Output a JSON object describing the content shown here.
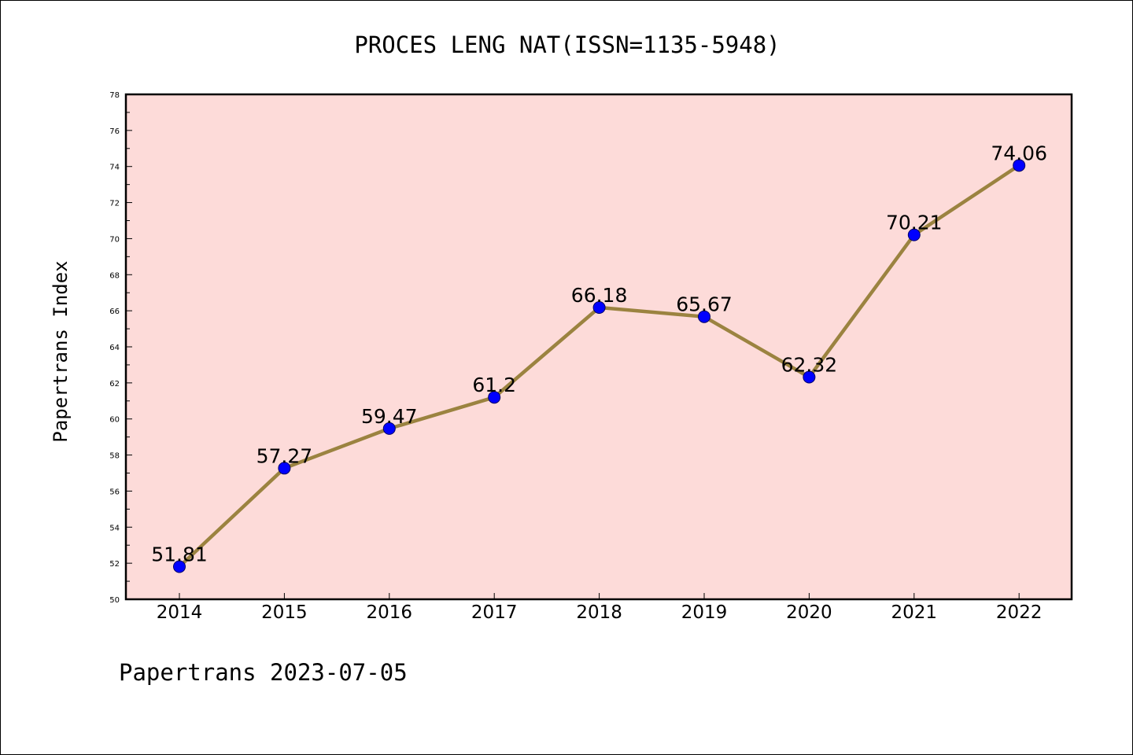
{
  "chart_data": {
    "type": "line",
    "title": "PROCES LENG NAT(ISSN=1135-5948)",
    "ylabel": "Papertrans Index",
    "xlabel": "",
    "categories": [
      "2014",
      "2015",
      "2016",
      "2017",
      "2018",
      "2019",
      "2020",
      "2021",
      "2022"
    ],
    "values": [
      51.81,
      57.27,
      59.47,
      61.2,
      66.18,
      65.67,
      62.32,
      70.21,
      74.06
    ],
    "data_labels": [
      "51.81",
      "57.27",
      "59.47",
      "61.2",
      "66.18",
      "65.67",
      "62.32",
      "70.21",
      "74.06"
    ],
    "ylim": [
      50,
      78
    ],
    "yticks": [
      50,
      52,
      54,
      56,
      58,
      60,
      62,
      64,
      66,
      68,
      70,
      72,
      74,
      76,
      78
    ],
    "grid": false,
    "legend": "none",
    "colors": {
      "plot_background": "#fddbd9",
      "line": "#9b8340",
      "marker": "#0000ff",
      "marker_edge": "#000066"
    }
  },
  "footer": "Papertrans 2023-07-05"
}
